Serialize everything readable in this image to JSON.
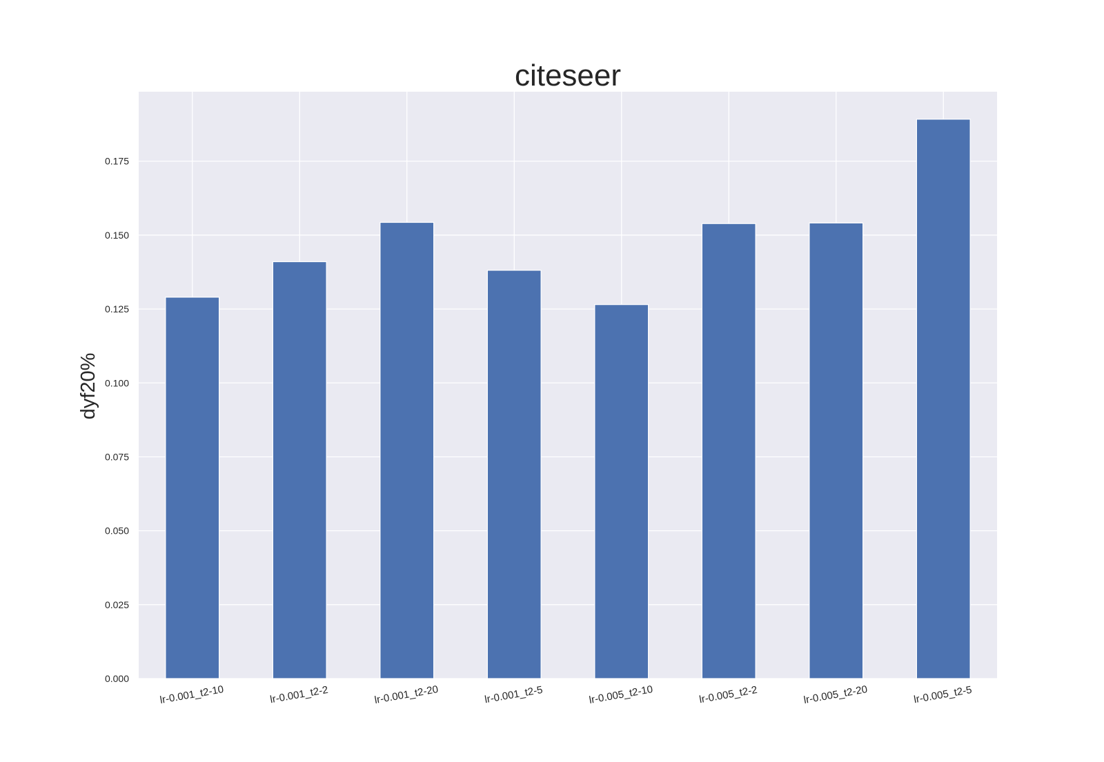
{
  "chart_data": {
    "type": "bar",
    "title": "citeseer",
    "xlabel": "",
    "ylabel": "dyf20%",
    "categories": [
      "lr-0.001_t2-10",
      "lr-0.001_t2-2",
      "lr-0.001_t2-20",
      "lr-0.001_t2-5",
      "lr-0.005_t2-10",
      "lr-0.005_t2-2",
      "lr-0.005_t2-20",
      "lr-0.005_t2-5"
    ],
    "values": [
      0.129,
      0.141,
      0.1543,
      0.1381,
      0.1265,
      0.1539,
      0.1541,
      0.1892
    ],
    "ylim": [
      0,
      0.1985
    ],
    "yticks": [
      "0.000",
      "0.025",
      "0.050",
      "0.075",
      "0.100",
      "0.125",
      "0.150",
      "0.175"
    ],
    "grid": true,
    "colors": {
      "bar": "#4c72b0",
      "plot_background": "#eaeaf2",
      "grid": "#ffffff",
      "text": "#262626"
    }
  }
}
